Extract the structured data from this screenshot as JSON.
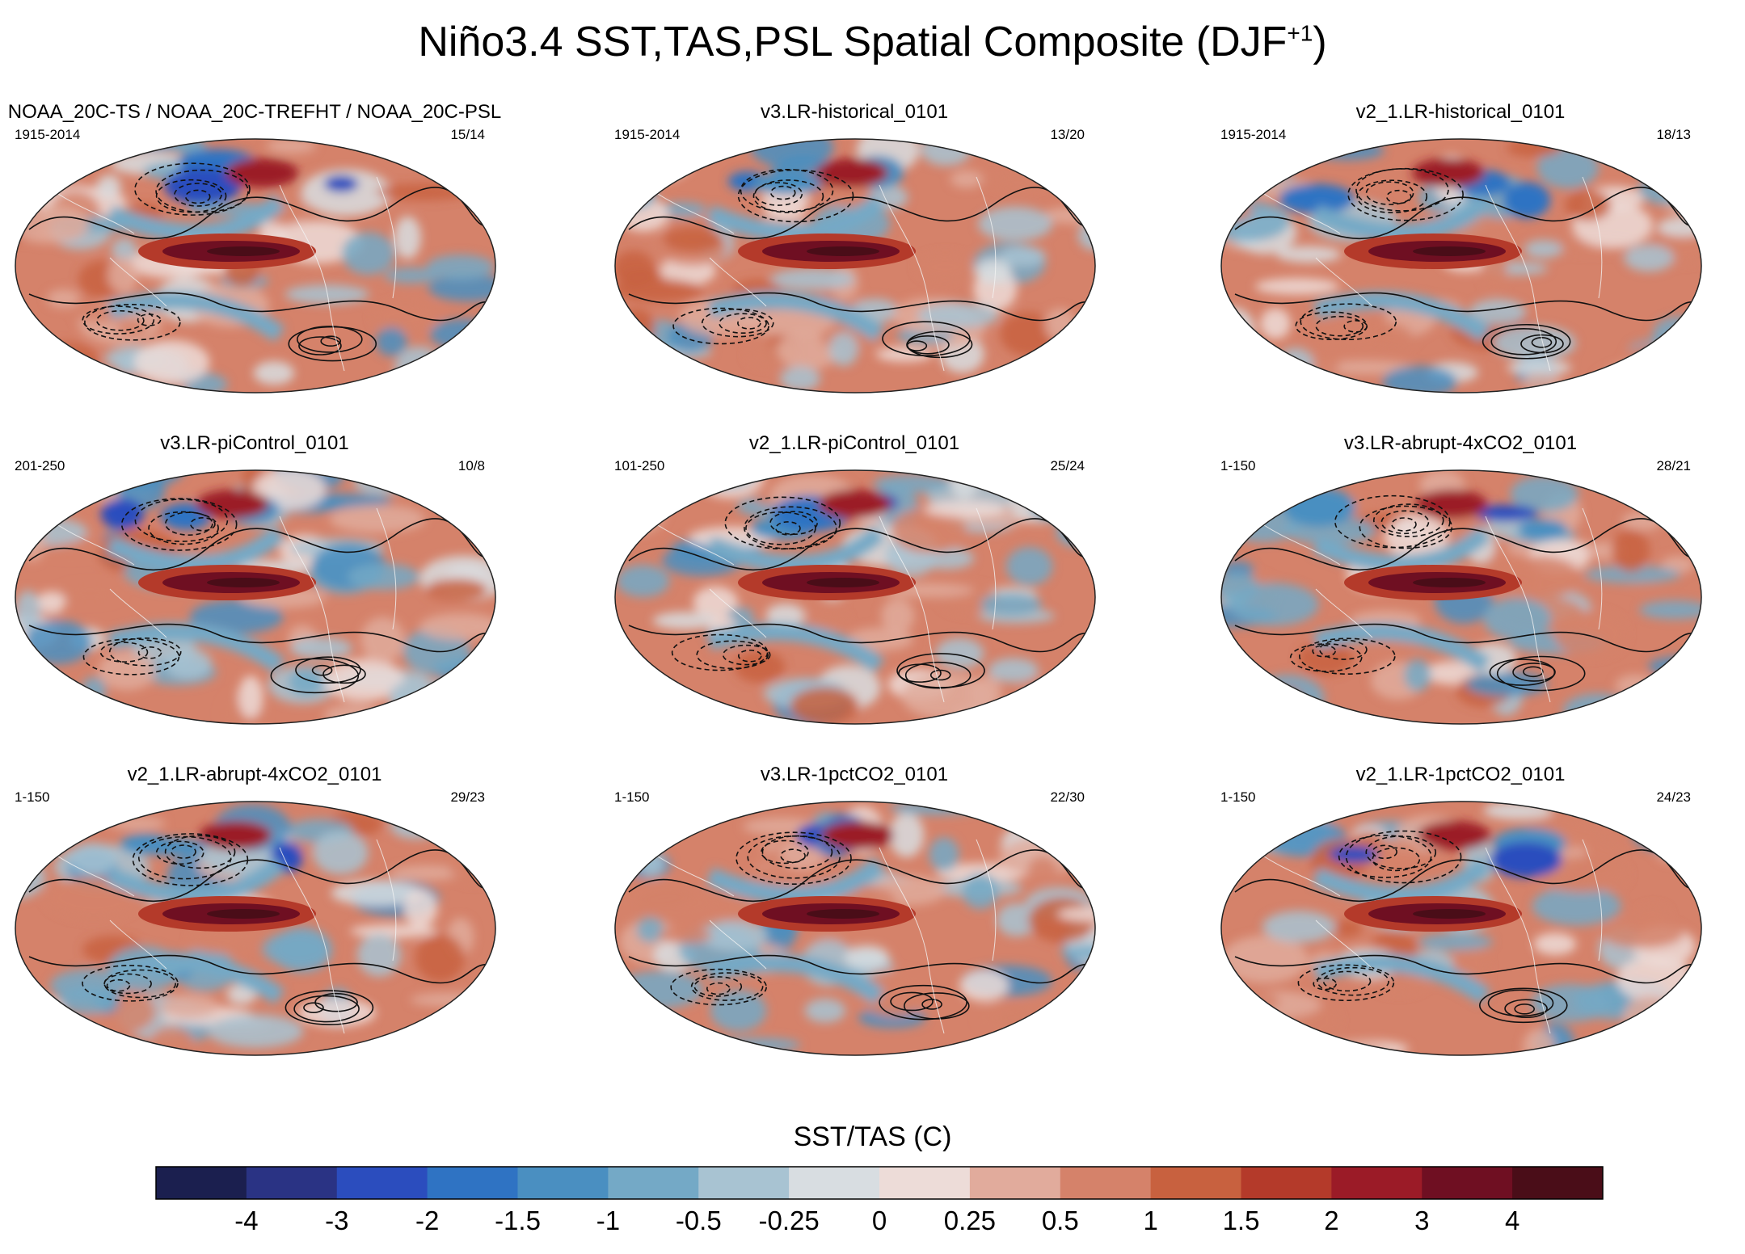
{
  "title_main": "Niño3.4 SST,TAS,PSL Spatial Composite (DJF",
  "title_sup": "+1",
  "title_close": ")",
  "panels": [
    {
      "title": "NOAA_20C-TS / NOAA_20C-TREFHT / NOAA_20C-PSL",
      "left": "1915-2014",
      "right": "15/14"
    },
    {
      "title": "v3.LR-historical_0101",
      "left": "1915-2014",
      "right": "13/20"
    },
    {
      "title": "v2_1.LR-historical_0101",
      "left": "1915-2014",
      "right": "18/13"
    },
    {
      "title": "v3.LR-piControl_0101",
      "left": "201-250",
      "right": "10/8"
    },
    {
      "title": "v2_1.LR-piControl_0101",
      "left": "101-250",
      "right": "25/24"
    },
    {
      "title": "v3.LR-abrupt-4xCO2_0101",
      "left": "1-150",
      "right": "28/21"
    },
    {
      "title": "v2_1.LR-abrupt-4xCO2_0101",
      "left": "1-150",
      "right": "29/23"
    },
    {
      "title": "v3.LR-1pctCO2_0101",
      "left": "1-150",
      "right": "22/30"
    },
    {
      "title": "v2_1.LR-1pctCO2_0101",
      "left": "1-150",
      "right": "24/23"
    }
  ],
  "colorbar": {
    "title": "SST/TAS (C)",
    "labels": [
      "-4",
      "-3",
      "-2",
      "-1.5",
      "-1",
      "-0.5",
      "-0.25",
      "0",
      "0.25",
      "0.5",
      "1",
      "1.5",
      "2",
      "3",
      "4"
    ],
    "colors": [
      "#1b1f4f",
      "#2a3384",
      "#2b4dbe",
      "#2f73c3",
      "#4a8fc1",
      "#74a9c6",
      "#a8c3d2",
      "#d8dde1",
      "#eddcd8",
      "#e1ab9c",
      "#d5826a",
      "#c8613f",
      "#b43a2a",
      "#9b1b27",
      "#6f0f22",
      "#4a0d18"
    ]
  },
  "chart_data": {
    "type": "heatmap",
    "title": "Niño3.4 SST,TAS,PSL Spatial Composite (DJF+1)",
    "variable": "SST/TAS (C)",
    "contour_levels": [
      -4,
      -3,
      -2,
      -1.5,
      -1,
      -0.5,
      -0.25,
      0,
      0.25,
      0.5,
      1,
      1.5,
      2,
      3,
      4
    ],
    "projection": "Robinson global map",
    "overlay": "PSL contours (solid positive, dashed negative)",
    "panels": 9
  }
}
